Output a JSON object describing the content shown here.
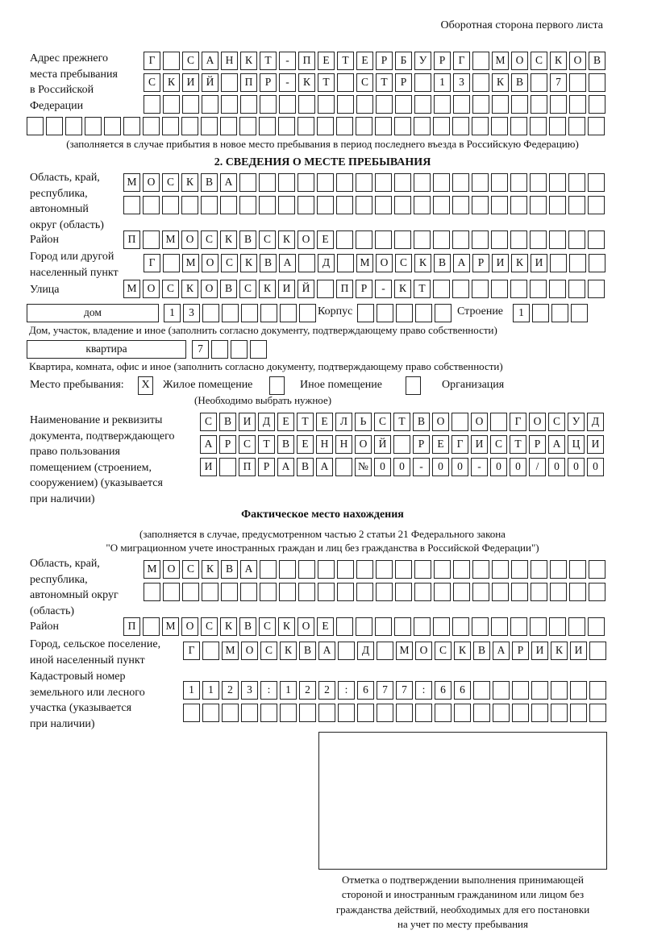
{
  "page_header": "Оборотная сторона первого листа",
  "previous_address": {
    "label": [
      "Адрес прежнего",
      "места пребывания",
      "в Российской",
      "Федерации"
    ],
    "rows": [
      "Г САНКТ-ПЕТЕРБУРГ МОСКОВ",
      "СКИЙ ПР-КТ СТР 13 КВ 7",
      "",
      ""
    ],
    "note": "(заполняется в случае прибытия в новое место пребывания в период последнего въезда в Российскую Федерацию)"
  },
  "section2": {
    "title": "2. СВЕДЕНИЯ О МЕСТЕ ПРЕБЫВАНИЯ",
    "region_label": [
      "Область, край,",
      "республика,",
      "автономный",
      "округ (область)"
    ],
    "region_rows": [
      "МОСКВА",
      ""
    ],
    "district_label": "Район",
    "district_row": "П МОСКВСКОЕ",
    "city_label": [
      "Город или другой",
      "населенный пункт"
    ],
    "city_row": "Г МОСКВА Д МОСКВАРИКИ",
    "street_label": "Улица",
    "street_row": "МОСКОВСКИЙ ПР-КТ",
    "house_type": "дом",
    "house_number": "13",
    "korpus_label": "Корпус",
    "korpus_value": "",
    "building_label": "Строение",
    "building_value": "1",
    "house_note": "Дом, участок, владение и иное (заполнить согласно документу, подтверждающему право собственности)",
    "apartment_type": "квартира",
    "apartment_number": "7",
    "apartment_note": "Квартира, комната, офис и иное (заполнить согласно документу, подтверждающему право собственности)",
    "stay_place_label": "Место пребывания:",
    "stay_options": [
      {
        "label": "Жилое помещение",
        "mark": "X"
      },
      {
        "label": "Иное помещение",
        "mark": ""
      },
      {
        "label": "Организация",
        "mark": ""
      }
    ],
    "stay_note": "(Необходимо выбрать нужное)",
    "document_label": [
      "Наименование и реквизиты",
      "документа, подтверждающего",
      "право пользования",
      "помещением (строением,",
      "сооружением) (указывается",
      "при наличии)"
    ],
    "document_rows": [
      "СВИДЕТЕЛЬСТВО О ГОСУД",
      "АРСТВЕННОЙ РЕГИСТРАЦИ",
      "И ПРАВА №00-00-00/000"
    ]
  },
  "actual_location": {
    "title": "Фактическое место нахождения",
    "note": [
      "(заполняется в случае, предусмотренном частью 2 статьи 21 Федерального закона",
      "\"О миграционном учете иностранных граждан и лиц без гражданства в Российской Федерации\")"
    ],
    "region_label": [
      "Область, край,",
      "республика,",
      "автономный округ",
      "(область)"
    ],
    "region_rows": [
      "МОСКВА",
      ""
    ],
    "district_label": "Район",
    "district_row": "П МОСКВСКОЕ",
    "city_label": [
      "Город, сельское поселение,",
      "иной населенный пункт"
    ],
    "city_row": "Г МОСКВА Д МОСКВАРИКИ",
    "cadastral_label": [
      "Кадастровый номер",
      "земельного или лесного",
      "участка (указывается",
      "при наличии)"
    ],
    "cadastral_rows": [
      "1123:122:677:66",
      ""
    ]
  },
  "stamp_caption": [
    "Отметка о подтверждении выполнения принимающей",
    "стороной и иностранным гражданином или лицом без",
    "гражданства действий, необходимых для его постановки",
    "на учет по месту пребывания"
  ]
}
